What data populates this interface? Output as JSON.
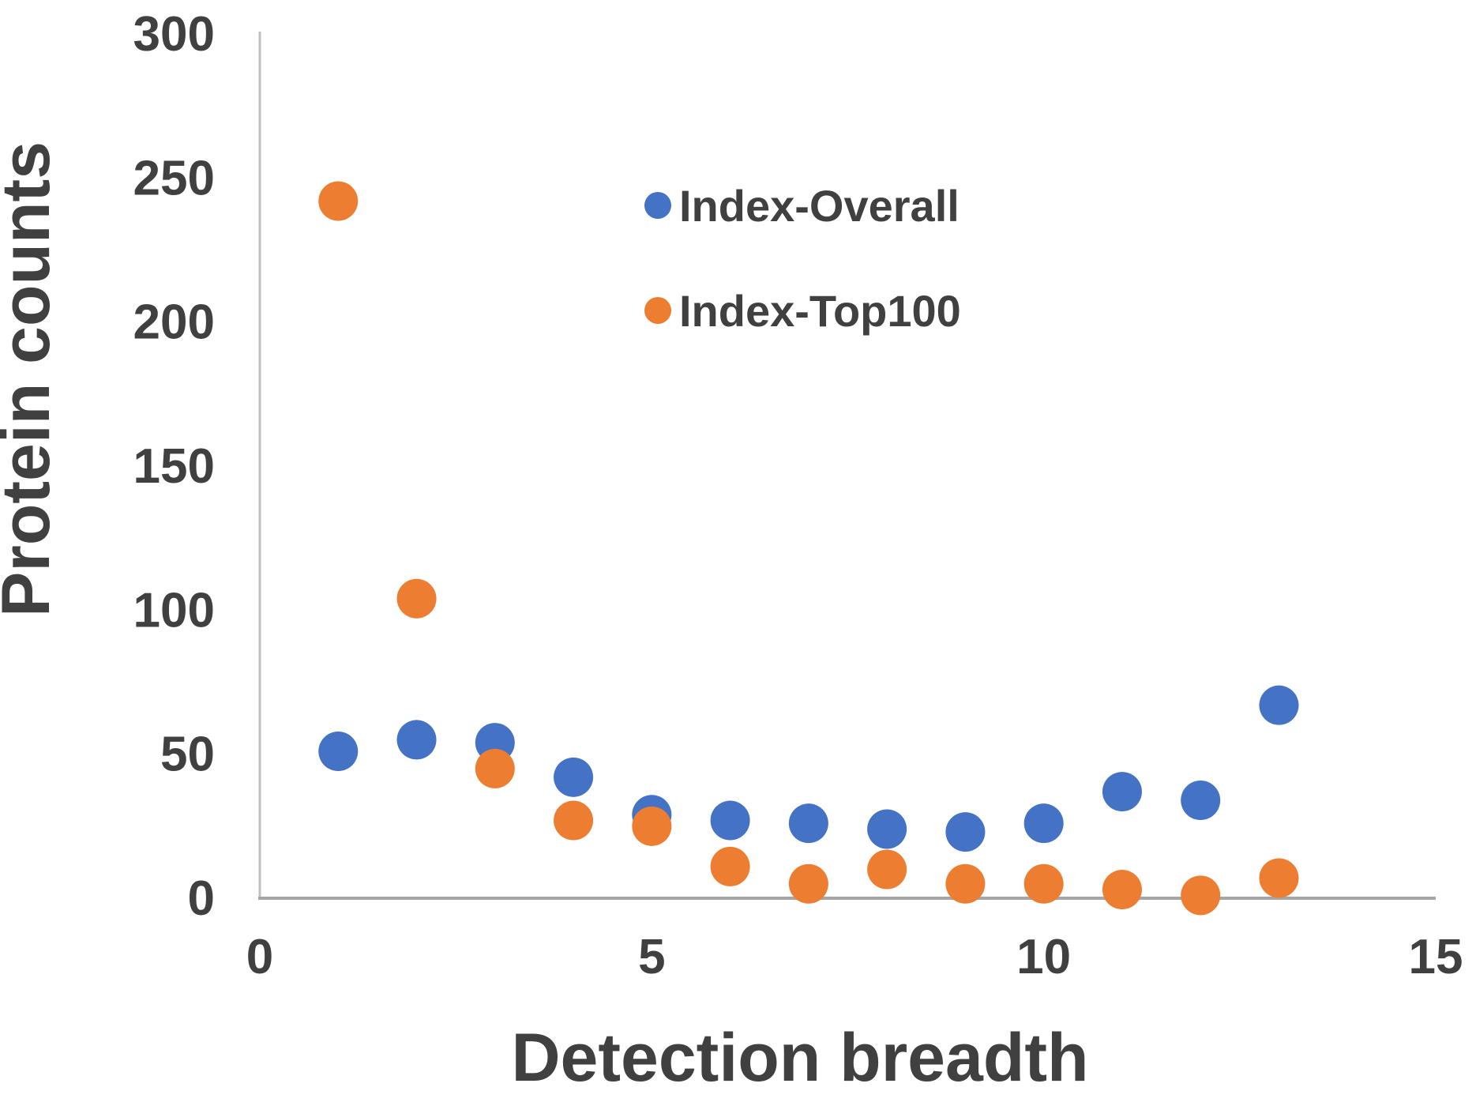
{
  "figure": {
    "background": "#FFFFFF"
  },
  "chart_data": {
    "type": "scatter",
    "title": "",
    "xlabel": "Detection breadth",
    "ylabel": "Protein counts",
    "xlim": [
      0,
      15
    ],
    "ylim": [
      0,
      300
    ],
    "x_ticks": [
      0,
      5,
      10,
      15
    ],
    "y_ticks": [
      0,
      50,
      100,
      150,
      200,
      250,
      300
    ],
    "grid": false,
    "legend_position": "upper-center-inside",
    "x": [
      1,
      2,
      3,
      4,
      5,
      6,
      7,
      8,
      9,
      10,
      11,
      12,
      13
    ],
    "series": [
      {
        "name": "Index-Overall",
        "marker": "circle",
        "color": "#4472C4",
        "values": [
          51,
          55,
          54,
          42,
          29,
          27,
          26,
          24,
          23,
          26,
          37,
          34,
          67
        ]
      },
      {
        "name": "Index-Top100",
        "marker": "circle",
        "color": "#ED7D31",
        "values": [
          242,
          104,
          45,
          27,
          25,
          11,
          5,
          10,
          5,
          5,
          3,
          1,
          7
        ]
      }
    ],
    "colors": {
      "text": "#404040",
      "y_axis_line": "#C0C0C0",
      "x_axis_line": "#A6A6A6"
    }
  }
}
